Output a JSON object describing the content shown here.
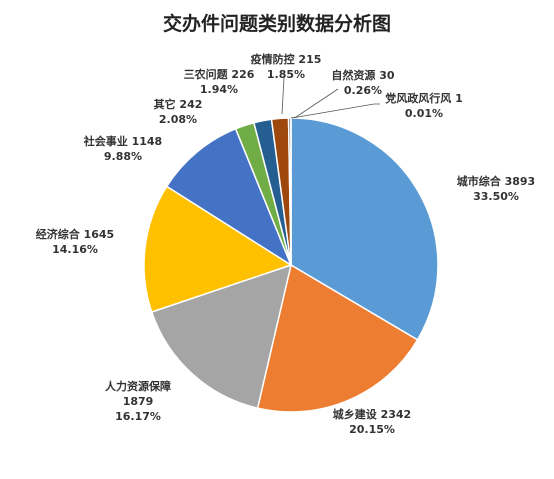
{
  "chart_data": {
    "type": "pie",
    "title": "交办件问题类别数据分析图",
    "slices": [
      {
        "name": "城市综合",
        "value": 3893,
        "percent": "33.50%",
        "color": "#5B9BD5"
      },
      {
        "name": "城乡建设",
        "value": 2342,
        "percent": "20.15%",
        "color": "#ED7D31"
      },
      {
        "name": "人力资源保障",
        "value": 1879,
        "percent": "16.17%",
        "color": "#A5A5A5"
      },
      {
        "name": "经济综合",
        "value": 1645,
        "percent": "14.16%",
        "color": "#FFC000"
      },
      {
        "name": "社会事业",
        "value": 1148,
        "percent": "9.88%",
        "color": "#4472C4"
      },
      {
        "name": "其它",
        "value": 242,
        "percent": "2.08%",
        "color": "#70AD47"
      },
      {
        "name": "三农问题",
        "value": 226,
        "percent": "1.94%",
        "color": "#255E91"
      },
      {
        "name": "疫情防控",
        "value": 215,
        "percent": "1.85%",
        "color": "#9E480E"
      },
      {
        "name": "自然资源",
        "value": 30,
        "percent": "0.26%",
        "color": "#636363"
      },
      {
        "name": "党风政风行风",
        "value": 1,
        "percent": "0.01%",
        "color": "#997300"
      }
    ]
  }
}
